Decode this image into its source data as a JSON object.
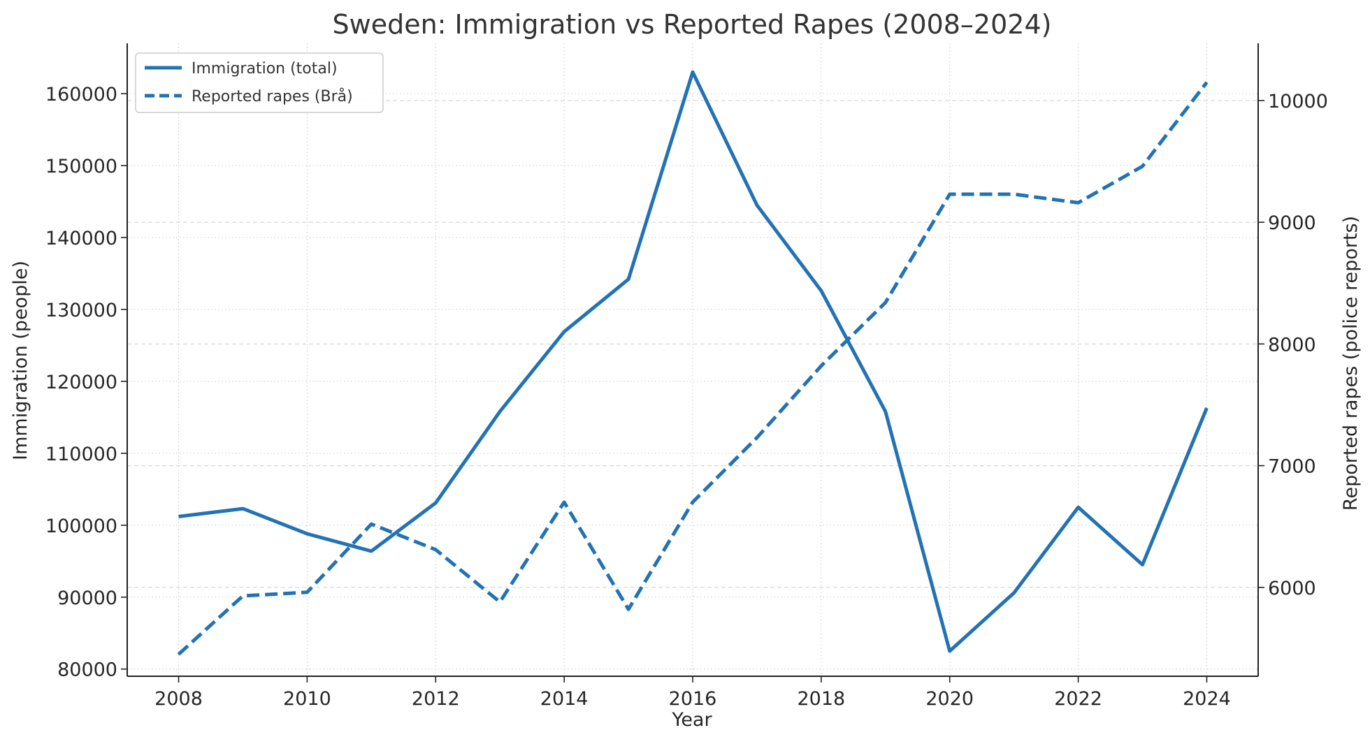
{
  "chart_data": {
    "type": "line",
    "title": "Sweden: Immigration vs Reported Rapes (2008–2024)",
    "xlabel": "Year",
    "ylabel_left": "Immigration (people)",
    "ylabel_right": "Reported rapes (police reports)",
    "x": [
      2008,
      2009,
      2010,
      2011,
      2012,
      2013,
      2014,
      2015,
      2016,
      2017,
      2018,
      2019,
      2020,
      2021,
      2022,
      2023,
      2024
    ],
    "x_ticks": [
      2008,
      2010,
      2012,
      2014,
      2016,
      2018,
      2020,
      2022,
      2024
    ],
    "xlim": [
      2007.2,
      2024.8
    ],
    "ylim_left": [
      79000,
      167000
    ],
    "ylim_right": [
      5270,
      10470
    ],
    "y_ticks_left": [
      80000,
      90000,
      100000,
      110000,
      120000,
      130000,
      140000,
      150000,
      160000
    ],
    "y_ticks_right": [
      6000,
      7000,
      8000,
      9000,
      10000
    ],
    "grid": true,
    "legend_position": "top-left",
    "color": "#2272b4",
    "series": [
      {
        "name": "Immigration (total)",
        "axis": "left",
        "line_style": "solid",
        "values": [
          101200,
          102300,
          98800,
          96400,
          103100,
          115800,
          126900,
          134200,
          163000,
          144500,
          132600,
          115800,
          82500,
          90600,
          102500,
          94500,
          116300
        ]
      },
      {
        "name": "Reported rapes (Brå)",
        "axis": "right",
        "line_style": "dashed",
        "values": [
          5450,
          5930,
          5960,
          6520,
          6310,
          5880,
          6700,
          5820,
          6700,
          7230,
          7820,
          8340,
          9230,
          9230,
          9160,
          9460,
          10150
        ]
      }
    ]
  }
}
